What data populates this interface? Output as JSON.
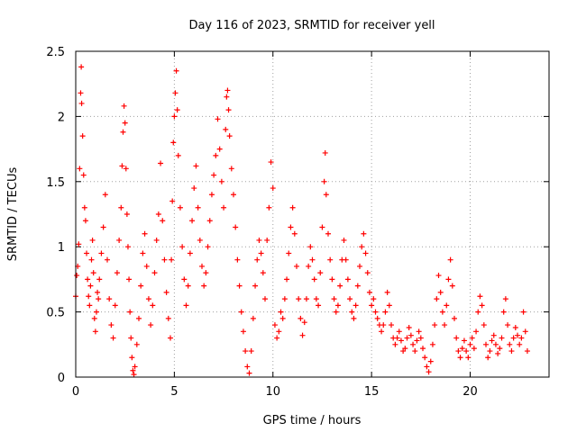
{
  "chart_data": {
    "type": "scatter",
    "title": "Day 116 of 2023, SRMTID for receiver yell",
    "xlabel": "GPS time / hours",
    "ylabel": "SRMTID / TECUs",
    "xlim": [
      0,
      24
    ],
    "ylim": [
      0,
      2.5
    ],
    "xticks": [
      0,
      5,
      10,
      15,
      20
    ],
    "yticks": [
      0,
      0.5,
      1,
      1.5,
      2,
      2.5
    ],
    "xtick_labels": [
      "0",
      "5",
      "10",
      "15",
      "20"
    ],
    "ytick_labels": [
      "0",
      "0.5",
      "1",
      "1.5",
      "2",
      "2.5"
    ],
    "grid": true,
    "marker": "+",
    "series": [
      {
        "name": "SRMTID",
        "color": "#ff0000",
        "points": [
          [
            0.0,
            0.62
          ],
          [
            0.05,
            0.78
          ],
          [
            0.1,
            0.85
          ],
          [
            0.15,
            1.02
          ],
          [
            0.2,
            1.6
          ],
          [
            0.25,
            2.18
          ],
          [
            0.28,
            2.38
          ],
          [
            0.3,
            2.1
          ],
          [
            0.35,
            1.85
          ],
          [
            0.4,
            1.55
          ],
          [
            0.45,
            1.3
          ],
          [
            0.5,
            1.2
          ],
          [
            0.55,
            0.95
          ],
          [
            0.6,
            0.75
          ],
          [
            0.65,
            0.62
          ],
          [
            0.7,
            0.55
          ],
          [
            0.75,
            0.7
          ],
          [
            0.8,
            0.9
          ],
          [
            0.85,
            1.05
          ],
          [
            0.9,
            0.8
          ],
          [
            0.95,
            0.45
          ],
          [
            1.0,
            0.35
          ],
          [
            1.05,
            0.5
          ],
          [
            1.1,
            0.65
          ],
          [
            1.15,
            0.6
          ],
          [
            1.2,
            0.75
          ],
          [
            1.3,
            0.95
          ],
          [
            1.4,
            1.15
          ],
          [
            1.5,
            1.4
          ],
          [
            1.6,
            0.9
          ],
          [
            1.7,
            0.6
          ],
          [
            1.8,
            0.4
          ],
          [
            1.9,
            0.3
          ],
          [
            2.0,
            0.55
          ],
          [
            2.1,
            0.8
          ],
          [
            2.2,
            1.05
          ],
          [
            2.3,
            1.3
          ],
          [
            2.35,
            1.62
          ],
          [
            2.4,
            1.88
          ],
          [
            2.45,
            2.08
          ],
          [
            2.5,
            1.95
          ],
          [
            2.55,
            1.6
          ],
          [
            2.6,
            1.25
          ],
          [
            2.65,
            1.0
          ],
          [
            2.7,
            0.75
          ],
          [
            2.75,
            0.5
          ],
          [
            2.8,
            0.3
          ],
          [
            2.85,
            0.15
          ],
          [
            2.9,
            0.05
          ],
          [
            2.95,
            0.02
          ],
          [
            3.0,
            0.08
          ],
          [
            3.1,
            0.25
          ],
          [
            3.2,
            0.45
          ],
          [
            3.3,
            0.7
          ],
          [
            3.4,
            0.95
          ],
          [
            3.5,
            1.1
          ],
          [
            3.6,
            0.85
          ],
          [
            3.7,
            0.6
          ],
          [
            3.8,
            0.4
          ],
          [
            3.9,
            0.55
          ],
          [
            4.0,
            0.8
          ],
          [
            4.1,
            1.05
          ],
          [
            4.2,
            1.25
          ],
          [
            4.3,
            1.64
          ],
          [
            4.4,
            1.2
          ],
          [
            4.5,
            0.9
          ],
          [
            4.6,
            0.65
          ],
          [
            4.7,
            0.45
          ],
          [
            4.8,
            0.3
          ],
          [
            4.85,
            0.9
          ],
          [
            4.9,
            1.35
          ],
          [
            4.95,
            1.8
          ],
          [
            5.0,
            2.0
          ],
          [
            5.05,
            2.18
          ],
          [
            5.1,
            2.35
          ],
          [
            5.15,
            2.05
          ],
          [
            5.2,
            1.7
          ],
          [
            5.3,
            1.3
          ],
          [
            5.4,
            1.0
          ],
          [
            5.5,
            0.75
          ],
          [
            5.6,
            0.55
          ],
          [
            5.7,
            0.7
          ],
          [
            5.8,
            0.95
          ],
          [
            5.9,
            1.2
          ],
          [
            6.0,
            1.45
          ],
          [
            6.1,
            1.62
          ],
          [
            6.2,
            1.3
          ],
          [
            6.3,
            1.05
          ],
          [
            6.4,
            0.85
          ],
          [
            6.5,
            0.7
          ],
          [
            6.6,
            0.8
          ],
          [
            6.7,
            1.0
          ],
          [
            6.8,
            1.2
          ],
          [
            6.9,
            1.4
          ],
          [
            7.0,
            1.55
          ],
          [
            7.1,
            1.7
          ],
          [
            7.2,
            1.98
          ],
          [
            7.3,
            1.75
          ],
          [
            7.4,
            1.5
          ],
          [
            7.5,
            1.3
          ],
          [
            7.6,
            1.9
          ],
          [
            7.65,
            2.15
          ],
          [
            7.7,
            2.2
          ],
          [
            7.75,
            2.05
          ],
          [
            7.8,
            1.85
          ],
          [
            7.9,
            1.6
          ],
          [
            8.0,
            1.4
          ],
          [
            8.1,
            1.15
          ],
          [
            8.2,
            0.9
          ],
          [
            8.3,
            0.7
          ],
          [
            8.4,
            0.5
          ],
          [
            8.5,
            0.35
          ],
          [
            8.6,
            0.2
          ],
          [
            8.7,
            0.08
          ],
          [
            8.8,
            0.03
          ],
          [
            8.9,
            0.2
          ],
          [
            9.0,
            0.45
          ],
          [
            9.1,
            0.7
          ],
          [
            9.2,
            0.9
          ],
          [
            9.3,
            1.05
          ],
          [
            9.4,
            0.95
          ],
          [
            9.5,
            0.8
          ],
          [
            9.6,
            0.6
          ],
          [
            9.7,
            1.05
          ],
          [
            9.8,
            1.3
          ],
          [
            9.9,
            1.65
          ],
          [
            10.0,
            1.45
          ],
          [
            10.1,
            0.4
          ],
          [
            10.2,
            0.3
          ],
          [
            10.3,
            0.35
          ],
          [
            10.4,
            0.5
          ],
          [
            10.5,
            0.45
          ],
          [
            10.6,
            0.6
          ],
          [
            10.7,
            0.75
          ],
          [
            10.8,
            0.95
          ],
          [
            10.9,
            1.15
          ],
          [
            11.0,
            1.3
          ],
          [
            11.1,
            1.1
          ],
          [
            11.2,
            0.85
          ],
          [
            11.3,
            0.6
          ],
          [
            11.4,
            0.45
          ],
          [
            11.5,
            0.32
          ],
          [
            11.6,
            0.42
          ],
          [
            11.7,
            0.6
          ],
          [
            11.8,
            0.85
          ],
          [
            11.9,
            1.0
          ],
          [
            12.0,
            0.9
          ],
          [
            12.1,
            0.75
          ],
          [
            12.2,
            0.6
          ],
          [
            12.3,
            0.55
          ],
          [
            12.4,
            0.8
          ],
          [
            12.5,
            1.15
          ],
          [
            12.6,
            1.5
          ],
          [
            12.65,
            1.72
          ],
          [
            12.7,
            1.4
          ],
          [
            12.8,
            1.1
          ],
          [
            12.9,
            0.9
          ],
          [
            13.0,
            0.75
          ],
          [
            13.1,
            0.6
          ],
          [
            13.2,
            0.5
          ],
          [
            13.3,
            0.55
          ],
          [
            13.4,
            0.7
          ],
          [
            13.5,
            0.9
          ],
          [
            13.6,
            1.05
          ],
          [
            13.7,
            0.9
          ],
          [
            13.8,
            0.75
          ],
          [
            13.9,
            0.6
          ],
          [
            14.0,
            0.5
          ],
          [
            14.1,
            0.45
          ],
          [
            14.2,
            0.55
          ],
          [
            14.3,
            0.7
          ],
          [
            14.4,
            0.85
          ],
          [
            14.5,
            1.0
          ],
          [
            14.6,
            1.1
          ],
          [
            14.7,
            0.95
          ],
          [
            14.8,
            0.8
          ],
          [
            14.9,
            0.65
          ],
          [
            15.0,
            0.55
          ],
          [
            15.1,
            0.6
          ],
          [
            15.2,
            0.5
          ],
          [
            15.3,
            0.45
          ],
          [
            15.4,
            0.4
          ],
          [
            15.5,
            0.35
          ],
          [
            15.6,
            0.4
          ],
          [
            15.7,
            0.5
          ],
          [
            15.8,
            0.65
          ],
          [
            15.9,
            0.55
          ],
          [
            16.0,
            0.4
          ],
          [
            16.1,
            0.3
          ],
          [
            16.2,
            0.25
          ],
          [
            16.3,
            0.3
          ],
          [
            16.4,
            0.35
          ],
          [
            16.5,
            0.28
          ],
          [
            16.6,
            0.2
          ],
          [
            16.7,
            0.22
          ],
          [
            16.8,
            0.3
          ],
          [
            16.9,
            0.38
          ],
          [
            17.0,
            0.32
          ],
          [
            17.1,
            0.25
          ],
          [
            17.2,
            0.2
          ],
          [
            17.3,
            0.28
          ],
          [
            17.4,
            0.35
          ],
          [
            17.5,
            0.3
          ],
          [
            17.6,
            0.22
          ],
          [
            17.7,
            0.15
          ],
          [
            17.8,
            0.08
          ],
          [
            17.9,
            0.04
          ],
          [
            18.0,
            0.12
          ],
          [
            18.1,
            0.25
          ],
          [
            18.2,
            0.4
          ],
          [
            18.3,
            0.6
          ],
          [
            18.4,
            0.78
          ],
          [
            18.5,
            0.65
          ],
          [
            18.6,
            0.5
          ],
          [
            18.7,
            0.4
          ],
          [
            18.8,
            0.55
          ],
          [
            18.9,
            0.75
          ],
          [
            19.0,
            0.9
          ],
          [
            19.1,
            0.7
          ],
          [
            19.2,
            0.45
          ],
          [
            19.3,
            0.3
          ],
          [
            19.4,
            0.2
          ],
          [
            19.5,
            0.15
          ],
          [
            19.6,
            0.22
          ],
          [
            19.7,
            0.28
          ],
          [
            19.8,
            0.2
          ],
          [
            19.9,
            0.15
          ],
          [
            20.0,
            0.25
          ],
          [
            20.1,
            0.3
          ],
          [
            20.2,
            0.22
          ],
          [
            20.3,
            0.35
          ],
          [
            20.4,
            0.5
          ],
          [
            20.5,
            0.62
          ],
          [
            20.6,
            0.55
          ],
          [
            20.7,
            0.4
          ],
          [
            20.8,
            0.25
          ],
          [
            20.9,
            0.15
          ],
          [
            21.0,
            0.2
          ],
          [
            21.1,
            0.28
          ],
          [
            21.2,
            0.32
          ],
          [
            21.3,
            0.25
          ],
          [
            21.4,
            0.18
          ],
          [
            21.5,
            0.22
          ],
          [
            21.6,
            0.3
          ],
          [
            21.7,
            0.5
          ],
          [
            21.8,
            0.6
          ],
          [
            21.9,
            0.4
          ],
          [
            22.0,
            0.25
          ],
          [
            22.1,
            0.2
          ],
          [
            22.2,
            0.3
          ],
          [
            22.3,
            0.38
          ],
          [
            22.4,
            0.32
          ],
          [
            22.5,
            0.25
          ],
          [
            22.6,
            0.3
          ],
          [
            22.7,
            0.5
          ],
          [
            22.8,
            0.35
          ],
          [
            22.9,
            0.2
          ]
        ]
      }
    ]
  }
}
